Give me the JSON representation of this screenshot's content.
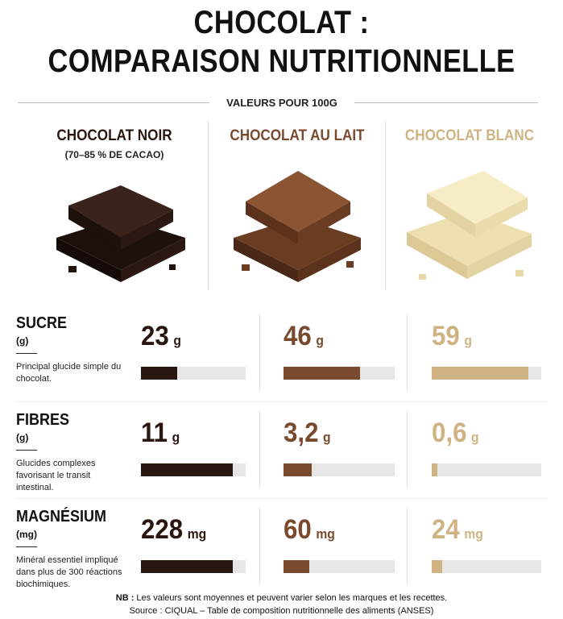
{
  "header": {
    "title_line1": "CHOCOLAT :",
    "title_line2": "COMPARAISON NUTRITIONNELLE",
    "subtitle": "VALEURS POUR 100G"
  },
  "columns": [
    {
      "name": "CHOCOLAT NOIR",
      "note": "(70–85 % DE CACAO)",
      "color": "#2a1610"
    },
    {
      "name": "CHOCOLAT AU LAIT",
      "color": "#7a4a2e"
    },
    {
      "name": "CHOCOLAT BLANC",
      "color": "#cfb383"
    }
  ],
  "rows": [
    {
      "name": "SUCRE",
      "unit_label": "(g)",
      "description": "Principal glucide simple du chocolat.",
      "unit": "g",
      "values": [
        23,
        46,
        59
      ]
    },
    {
      "name": "FIBRES",
      "unit_label": "(g)",
      "description": "Glucides complexes favorisant le transit intestinal.",
      "unit": "g",
      "values": [
        11,
        3.2,
        0.6
      ],
      "value_labels": [
        "11",
        "3,2",
        "0,6"
      ]
    },
    {
      "name": "MAGNÉSIUM",
      "unit_label": "(mg)",
      "description": "Minéral essentiel impliqué dans plus de 300 réactions biochimiques.",
      "unit": "mg",
      "values": [
        228,
        60,
        24
      ]
    }
  ],
  "footer": {
    "nb_label": "NB :",
    "nb": "Les valeurs sont moyennes et peuvent varier selon les marques et les recettes.",
    "source": "Source : CIQUAL – Table de composition nutritionnelle des aliments (ANSES)"
  }
}
